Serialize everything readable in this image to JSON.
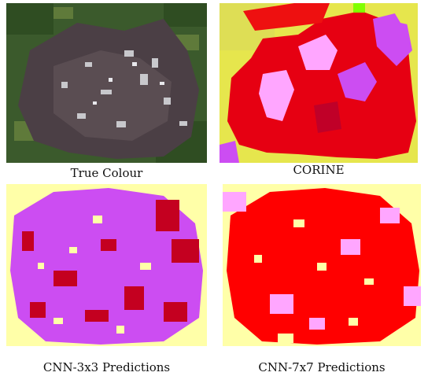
{
  "figure": {
    "panels": [
      {
        "caption": "True Colour",
        "image": "satellite-true-colour"
      },
      {
        "caption": "CORINE",
        "image": "corine-land-cover-map"
      },
      {
        "caption": "CNN-3x3 Predictions",
        "image": "cnn-3x3-prediction-map"
      },
      {
        "caption": "CNN-7x7 Predictions",
        "image": "cnn-7x7-prediction-map"
      }
    ],
    "colors": {
      "continuous_urban": "#e6001e",
      "discontinuous_urban": "#ff0000",
      "industrial": "#cc4df2",
      "green_urban": "#ffa6ff",
      "pasture": "#e6e64d",
      "arable": "#ffffa8",
      "forest": "#80ff00"
    }
  }
}
